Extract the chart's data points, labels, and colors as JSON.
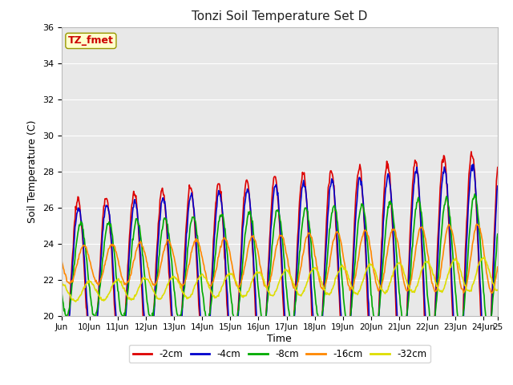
{
  "title": "Tonzi Soil Temperature Set D",
  "xlabel": "Time",
  "ylabel": "Soil Temperature (C)",
  "ylim": [
    20,
    36
  ],
  "xlim": [
    0,
    372
  ],
  "annotation": "TZ_fmet",
  "annotation_color": "#cc0000",
  "annotation_bg": "#ffffcc",
  "annotation_border": "#999900",
  "plot_bg": "#e8e8e8",
  "fig_bg": "#ffffff",
  "grid_color": "#ffffff",
  "series": [
    {
      "label": "-2cm",
      "color": "#dd0000",
      "lw": 1.2
    },
    {
      "label": "-4cm",
      "color": "#0000cc",
      "lw": 1.2
    },
    {
      "label": "-8cm",
      "color": "#00aa00",
      "lw": 1.2
    },
    {
      "label": "-16cm",
      "color": "#ff8800",
      "lw": 1.2
    },
    {
      "label": "-32cm",
      "color": "#dddd00",
      "lw": 1.2
    }
  ],
  "xtick_labels": [
    "Jun",
    "10Jun",
    "11Jun",
    "12Jun",
    "13Jun",
    "14Jun",
    "15Jun",
    "16Jun",
    "17Jun",
    "18Jun",
    "19Jun",
    "20Jun",
    "21Jun",
    "22Jun",
    "23Jun",
    "24Jun",
    "25"
  ],
  "xtick_positions": [
    0,
    24,
    48,
    72,
    96,
    120,
    144,
    168,
    192,
    216,
    240,
    264,
    288,
    312,
    336,
    360,
    372
  ],
  "ytick_positions": [
    20,
    22,
    24,
    26,
    28,
    30,
    32,
    34,
    36
  ]
}
